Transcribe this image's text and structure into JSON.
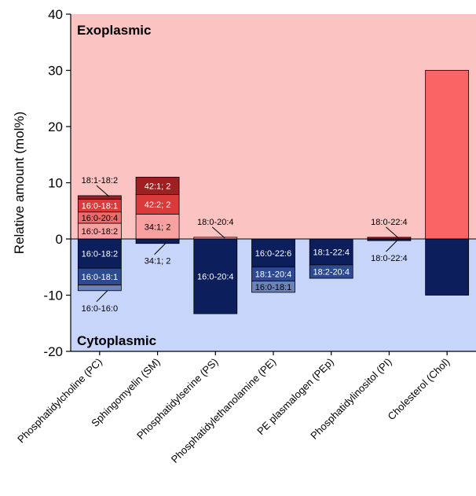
{
  "chart_data": {
    "type": "bar",
    "subtype": "stacked-diverging",
    "ylabel": "Relative amount (mol%)",
    "ylim": [
      -20,
      40
    ],
    "yticks": [
      -20,
      -10,
      0,
      10,
      20,
      30,
      40
    ],
    "grid": false,
    "regions": {
      "top_label": "Exoplasmic",
      "bottom_label": "Cytoplasmic",
      "top_color": "#fcc3c3",
      "bottom_color": "#c8d5fb"
    },
    "categories": [
      "Phosphatidylcholine (PC)",
      "Sphingomyelin (SM)",
      "Phosphatidylserine (PS)",
      "Phosphatidylethanolamine (PE)",
      "PE plasmalogen (PEp)",
      "Phosphatidylinositol (PI)",
      "Cholesterol (Chol)"
    ],
    "bars": [
      {
        "category": "Phosphatidylcholine (PC)",
        "exoplasmic": [
          {
            "label": "16:0-18:2",
            "value": 2.8,
            "color": "#f9a0a0",
            "label_inside": true
          },
          {
            "label": "16:0-20:4",
            "value": 2.0,
            "color": "#f06a6a",
            "label_inside": true
          },
          {
            "label": "16:0-18:1",
            "value": 2.3,
            "color": "#d93a3a",
            "label_inside": true
          },
          {
            "label": "18:1-18:2",
            "value": 0.6,
            "color": "#9e2020",
            "label_inside": false
          }
        ],
        "cytoplasmic": [
          {
            "label": "16:0-18:2",
            "value": 5.2,
            "color": "#0c1f5c",
            "label_inside": true
          },
          {
            "label": "16:0-18:1",
            "value": 3.0,
            "color": "#2c4b8f",
            "label_inside": true
          },
          {
            "label": "16:0-16:0",
            "value": 1.0,
            "color": "#6a83bb",
            "label_inside": false
          }
        ]
      },
      {
        "category": "Sphingomyelin (SM)",
        "exoplasmic": [
          {
            "label": "34:1; 2",
            "value": 4.4,
            "color": "#f9a0a0",
            "label_inside": true
          },
          {
            "label": "42:2; 2",
            "value": 3.5,
            "color": "#d93a3a",
            "label_inside": true
          },
          {
            "label": "42:1; 2",
            "value": 3.1,
            "color": "#9e2020",
            "label_inside": true
          }
        ],
        "cytoplasmic": [
          {
            "label": "34:1; 2",
            "value": 0.8,
            "color": "#0c1f5c",
            "label_inside": false
          }
        ]
      },
      {
        "category": "Phosphatidylserine (PS)",
        "exoplasmic": [
          {
            "label": "18:0-20:4",
            "value": 0.3,
            "color": "#f9a0a0",
            "label_inside": false
          }
        ],
        "cytoplasmic": [
          {
            "label": "16:0-20:4",
            "value": 13.3,
            "color": "#0c1f5c",
            "label_inside": true
          }
        ]
      },
      {
        "category": "Phosphatidylethanolamine (PE)",
        "exoplasmic": [],
        "cytoplasmic": [
          {
            "label": "16:0-22:6",
            "value": 5.0,
            "color": "#0c1f5c",
            "label_inside": true
          },
          {
            "label": "18:1-20:4",
            "value": 2.5,
            "color": "#2c4b8f",
            "label_inside": true
          },
          {
            "label": "16:0-18:1",
            "value": 2.0,
            "color": "#6a83bb",
            "label_inside": true
          }
        ]
      },
      {
        "category": "PE plasmalogen (PEp)",
        "exoplasmic": [],
        "cytoplasmic": [
          {
            "label": "18:1-22:4",
            "value": 4.6,
            "color": "#0c1f5c",
            "label_inside": true
          },
          {
            "label": "18:2-20:4",
            "value": 2.4,
            "color": "#2c4b8f",
            "label_inside": true
          }
        ]
      },
      {
        "category": "Phosphatidylinositol (PI)",
        "exoplasmic": [
          {
            "label": "18:0-22:4",
            "value": 0.3,
            "color": "#9e2020",
            "label_inside": false
          }
        ],
        "cytoplasmic": [
          {
            "label": "18:0-22:4",
            "value": 0.3,
            "color": "#0c1f5c",
            "label_inside": false
          }
        ]
      },
      {
        "category": "Cholesterol (Chol)",
        "exoplasmic": [
          {
            "label": "",
            "value": 30.0,
            "color": "#fa6464",
            "label_inside": false
          }
        ],
        "cytoplasmic": [
          {
            "label": "",
            "value": 10.0,
            "color": "#0c1f5c",
            "label_inside": false
          }
        ]
      }
    ]
  }
}
